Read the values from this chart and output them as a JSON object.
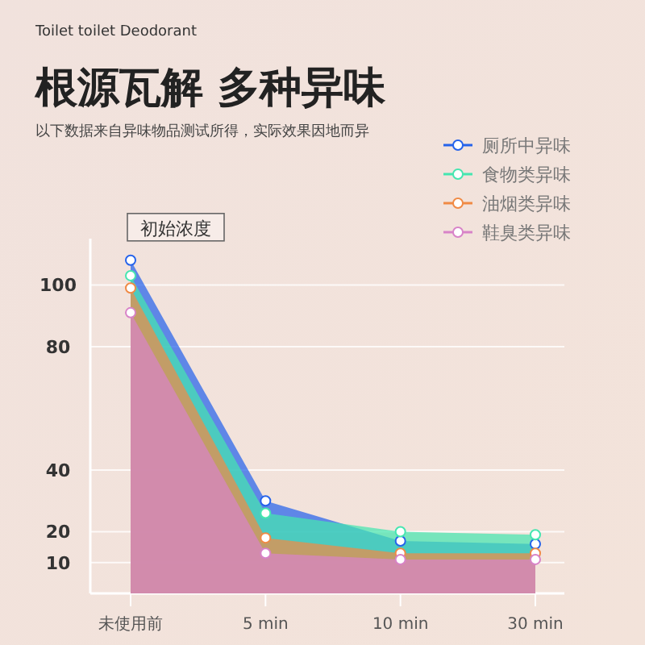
{
  "chart_data": {
    "type": "area",
    "title": "根源瓦解 多种异味",
    "subtitle": "以下数据来自异味物品测试所得，实际效果因地而异",
    "annotations": [
      "Toilet toilet Deodorant",
      {
        "text": "初始浓度",
        "x": "未使用前",
        "y": 108
      }
    ],
    "categories": [
      "未使用前",
      "5 min",
      "10 min",
      "30 min"
    ],
    "series": [
      {
        "name": "厕所中异味",
        "color": "#2563eb",
        "values": [
          108,
          30,
          17,
          16
        ]
      },
      {
        "name": "食物类异味",
        "color": "#45e6b0",
        "values": [
          103,
          26,
          20,
          19
        ]
      },
      {
        "name": "油烟类异味",
        "color": "#f08a45",
        "values": [
          99,
          18,
          13,
          13
        ]
      },
      {
        "name": "鞋臭类异味",
        "color": "#d883c8",
        "values": [
          91,
          13,
          11,
          11
        ]
      }
    ],
    "ylim": [
      0,
      115
    ],
    "yticks": [
      10,
      20,
      40,
      80,
      100
    ],
    "grid": "y",
    "legend": "top right",
    "marker": "circle"
  }
}
